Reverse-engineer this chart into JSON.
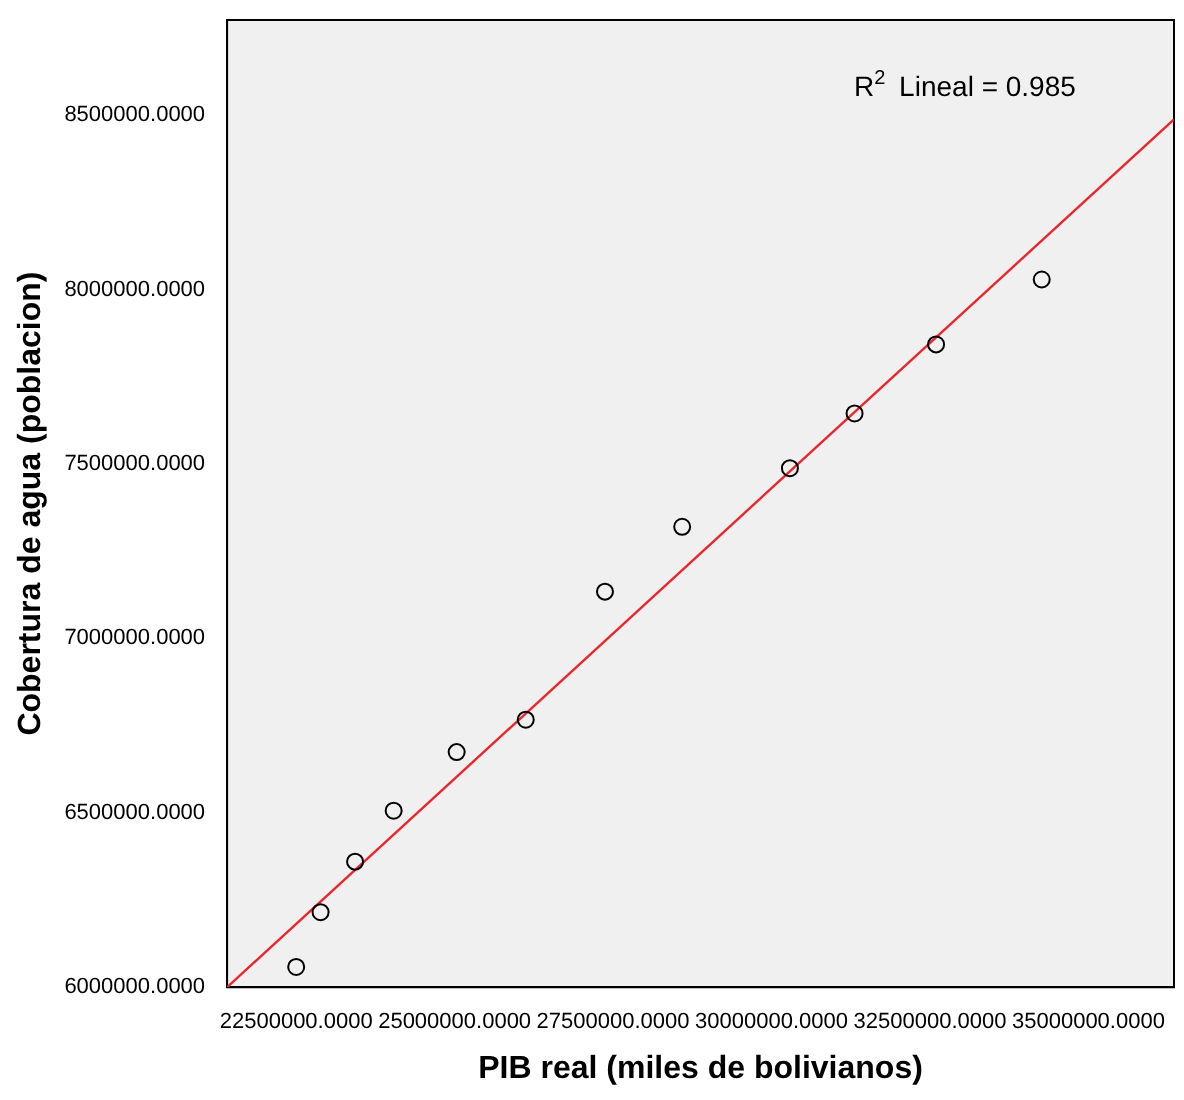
{
  "chart_data": {
    "type": "scatter",
    "xlabel": "PIB real (miles de bolivianos)",
    "ylabel": "Cobertura de agua (poblacion)",
    "x": [
      22500000,
      22885000,
      23429000,
      24038000,
      25032000,
      26122000,
      27372000,
      28590000,
      30290000,
      31310000,
      32596000,
      34263000
    ],
    "series": [
      {
        "color": "#000000",
        "marker": "circle",
        "values": [
          6058000,
          6215000,
          6360000,
          6506000,
          6674000,
          6767000,
          7134000,
          7320000,
          7488000,
          7645000,
          7843000,
          8029000
        ]
      },
      {
        "type": "line",
        "color": "#e8262b",
        "x": [
          21410000,
          36350000
        ],
        "values": [
          6000000,
          8488000
        ]
      }
    ],
    "xlim": [
      21410000,
      36350000
    ],
    "xticks": [
      {
        "value": 22500000,
        "label": "22500000.0000"
      },
      {
        "value": 25000000,
        "label": "25000000.0000"
      },
      {
        "value": 27500000,
        "label": "27500000.0000"
      },
      {
        "value": 30000000,
        "label": "30000000.0000"
      },
      {
        "value": 32500000,
        "label": "32500000.0000"
      },
      {
        "value": 35000000,
        "label": "35000000.0000"
      }
    ],
    "ylim": [
      6000000,
      8773000
    ],
    "yticks": [
      {
        "value": 6000000,
        "label": "6000000.0000"
      },
      {
        "value": 6500000,
        "label": "6500000.0000"
      },
      {
        "value": 7000000,
        "label": "7000000.0000"
      },
      {
        "value": 7500000,
        "label": "7500000.0000"
      },
      {
        "value": 8000000,
        "label": "8000000.0000"
      },
      {
        "value": 8500000,
        "label": "8500000.0000"
      }
    ],
    "annotations": [
      "R$^{2}$ Lineal = 0.985"
    ],
    "grid": false,
    "legend": false
  }
}
